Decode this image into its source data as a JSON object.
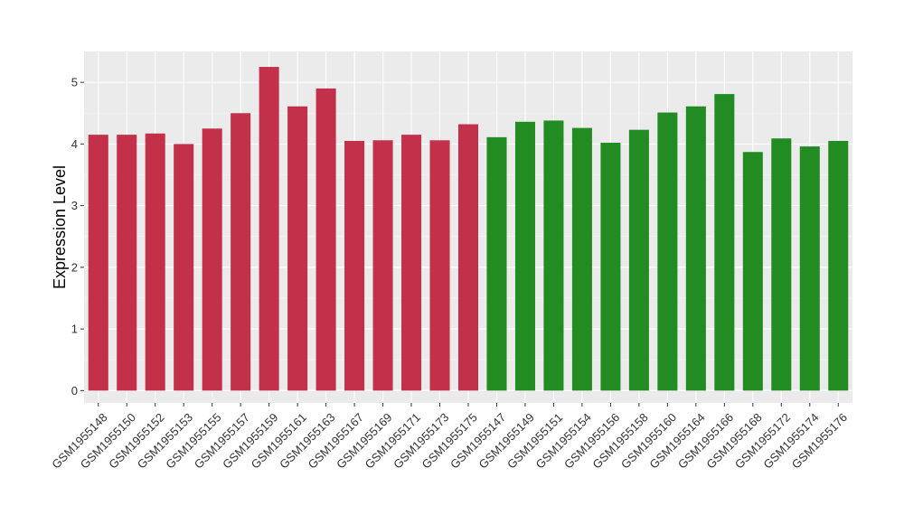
{
  "chart_data": {
    "type": "bar",
    "ylabel": "Expression Level",
    "xlabel": "",
    "ylim": [
      -0.2,
      5.5
    ],
    "yticks": [
      0,
      1,
      2,
      3,
      4,
      5
    ],
    "grid": true,
    "background": "#ebebeb",
    "categories": [
      "GSM1955148",
      "GSM1955150",
      "GSM1955152",
      "GSM1955153",
      "GSM1955155",
      "GSM1955157",
      "GSM1955159",
      "GSM1955161",
      "GSM1955163",
      "GSM1955167",
      "GSM1955169",
      "GSM1955171",
      "GSM1955173",
      "GSM1955175",
      "GSM1955147",
      "GSM1955149",
      "GSM1955151",
      "GSM1955154",
      "GSM1955156",
      "GSM1955158",
      "GSM1955160",
      "GSM1955164",
      "GSM1955166",
      "GSM1955168",
      "GSM1955172",
      "GSM1955174",
      "GSM1955176"
    ],
    "values": [
      4.15,
      4.15,
      4.17,
      4.0,
      4.25,
      4.5,
      5.25,
      4.61,
      4.9,
      4.05,
      4.06,
      4.15,
      4.06,
      4.32,
      4.11,
      4.36,
      4.38,
      4.26,
      4.02,
      4.23,
      4.51,
      4.61,
      4.81,
      3.87,
      4.09,
      3.96,
      4.05
    ],
    "bar_colors": [
      "#c3304a",
      "#c3304a",
      "#c3304a",
      "#c3304a",
      "#c3304a",
      "#c3304a",
      "#c3304a",
      "#c3304a",
      "#c3304a",
      "#c3304a",
      "#c3304a",
      "#c3304a",
      "#c3304a",
      "#c3304a",
      "#228b22",
      "#228b22",
      "#228b22",
      "#228b22",
      "#228b22",
      "#228b22",
      "#228b22",
      "#228b22",
      "#228b22",
      "#228b22",
      "#228b22",
      "#228b22",
      "#228b22"
    ]
  }
}
